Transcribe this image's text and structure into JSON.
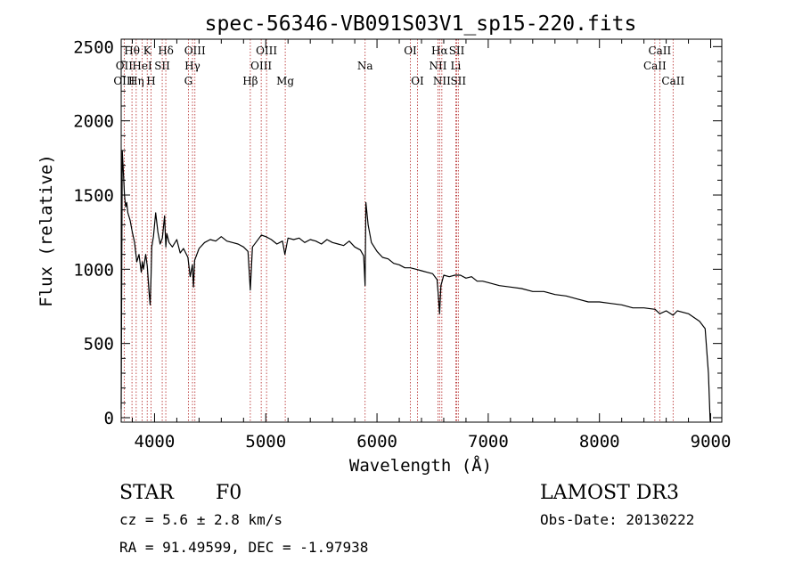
{
  "chart_data": {
    "type": "line",
    "title": "spec-56346-VB091S03V1_sp15-220.fits",
    "xlabel": "Wavelength (Å)",
    "ylabel": "Flux (relative)",
    "xlim": [
      3700,
      9100
    ],
    "ylim": [
      -30,
      2550
    ],
    "xticks": [
      4000,
      5000,
      6000,
      7000,
      8000,
      9000
    ],
    "xtick_labels": [
      "4000",
      "5000",
      "6000",
      "7000",
      "8000",
      "9000"
    ],
    "yticks": [
      0,
      500,
      1000,
      1500,
      2000,
      2500
    ],
    "ytick_labels": [
      "0",
      "500",
      "1000",
      "1500",
      "2000",
      "2500"
    ],
    "series": [
      {
        "name": "flux",
        "x": [
          3700,
          3710,
          3720,
          3730,
          3740,
          3750,
          3760,
          3780,
          3800,
          3820,
          3840,
          3860,
          3880,
          3890,
          3900,
          3920,
          3935,
          3950,
          3960,
          3968,
          3975,
          3990,
          4010,
          4030,
          4050,
          4070,
          4090,
          4101,
          4110,
          4130,
          4160,
          4200,
          4230,
          4260,
          4300,
          4320,
          4340,
          4350,
          4360,
          4400,
          4450,
          4500,
          4550,
          4600,
          4650,
          4700,
          4750,
          4800,
          4840,
          4861,
          4880,
          4920,
          4960,
          5000,
          5050,
          5100,
          5150,
          5172,
          5200,
          5250,
          5300,
          5350,
          5400,
          5450,
          5500,
          5550,
          5600,
          5650,
          5700,
          5750,
          5800,
          5850,
          5880,
          5893,
          5900,
          5920,
          5950,
          6000,
          6050,
          6100,
          6150,
          6200,
          6250,
          6300,
          6350,
          6400,
          6450,
          6500,
          6540,
          6555,
          6563,
          6575,
          6600,
          6650,
          6700,
          6750,
          6800,
          6850,
          6900,
          6950,
          7000,
          7100,
          7200,
          7300,
          7400,
          7500,
          7600,
          7700,
          7800,
          7900,
          8000,
          8100,
          8200,
          8300,
          8400,
          8500,
          8542,
          8600,
          8662,
          8700,
          8800,
          8900,
          8950,
          8980,
          8995,
          9000
        ],
        "values": [
          60,
          1800,
          1650,
          1500,
          1420,
          1450,
          1380,
          1330,
          1250,
          1180,
          1050,
          1100,
          980,
          1050,
          1000,
          1100,
          1020,
          850,
          760,
          950,
          1150,
          1220,
          1380,
          1250,
          1170,
          1210,
          1360,
          1150,
          1240,
          1180,
          1150,
          1200,
          1110,
          1140,
          1080,
          950,
          1030,
          880,
          1060,
          1140,
          1180,
          1200,
          1190,
          1220,
          1190,
          1180,
          1170,
          1150,
          1120,
          860,
          1150,
          1190,
          1230,
          1220,
          1200,
          1170,
          1190,
          1100,
          1210,
          1200,
          1210,
          1180,
          1200,
          1190,
          1170,
          1200,
          1180,
          1170,
          1160,
          1190,
          1150,
          1130,
          1090,
          890,
          1450,
          1300,
          1180,
          1120,
          1080,
          1070,
          1040,
          1030,
          1010,
          1010,
          1000,
          990,
          980,
          970,
          930,
          790,
          700,
          890,
          960,
          950,
          960,
          960,
          940,
          950,
          920,
          920,
          910,
          890,
          880,
          870,
          850,
          850,
          830,
          820,
          800,
          780,
          780,
          770,
          760,
          740,
          740,
          730,
          700,
          720,
          690,
          720,
          700,
          650,
          600,
          300,
          -20,
          -30
        ]
      }
    ],
    "line_marks": [
      {
        "label": "Hθ",
        "x": 3797,
        "row": 1
      },
      {
        "label": "OII",
        "x": 3727,
        "row": 2
      },
      {
        "label": "OIII",
        "x": 3727,
        "row": 3
      },
      {
        "label": "Hη",
        "x": 3835,
        "row": 3
      },
      {
        "label": "K",
        "x": 3934,
        "row": 1
      },
      {
        "label": "HeI",
        "x": 3889,
        "row": 2
      },
      {
        "label": "H",
        "x": 3968,
        "row": 3
      },
      {
        "label": "Hδ",
        "x": 4101,
        "row": 1
      },
      {
        "label": "SII",
        "x": 4069,
        "row": 2
      },
      {
        "label": "OIII",
        "x": 4363,
        "row": 1
      },
      {
        "label": "Hγ",
        "x": 4341,
        "row": 2
      },
      {
        "label": "G",
        "x": 4304,
        "row": 3
      },
      {
        "label": "Hβ",
        "x": 4861,
        "row": 3
      },
      {
        "label": "OIII",
        "x": 5007,
        "row": 1
      },
      {
        "label": "OIII",
        "x": 4959,
        "row": 2
      },
      {
        "label": "Mg",
        "x": 5175,
        "row": 3
      },
      {
        "label": "Na",
        "x": 5893,
        "row": 2
      },
      {
        "label": "OI",
        "x": 6300,
        "row": 1
      },
      {
        "label": "OI",
        "x": 6364,
        "row": 3
      },
      {
        "label": "Hα",
        "x": 6563,
        "row": 1
      },
      {
        "label": "NII",
        "x": 6548,
        "row": 2
      },
      {
        "label": "NII",
        "x": 6583,
        "row": 3
      },
      {
        "label": "SII",
        "x": 6717,
        "row": 1
      },
      {
        "label": "Li",
        "x": 6708,
        "row": 2
      },
      {
        "label": "SII",
        "x": 6731,
        "row": 3
      },
      {
        "label": "CaII",
        "x": 8542,
        "row": 1
      },
      {
        "label": "CaII",
        "x": 8498,
        "row": 2
      },
      {
        "label": "CaII",
        "x": 8662,
        "row": 3
      }
    ]
  },
  "info": {
    "object_class": "STAR",
    "subclass": "F0",
    "survey": "LAMOST DR3",
    "cz": "cz = 5.6 ± 2.8 km/s",
    "obs_date": "Obs-Date: 20130222",
    "coords": "RA =  91.49599, DEC =  -1.97938"
  },
  "colors": {
    "spectrum": "#000000",
    "line_marker": "#b22222",
    "axis": "#000000"
  }
}
